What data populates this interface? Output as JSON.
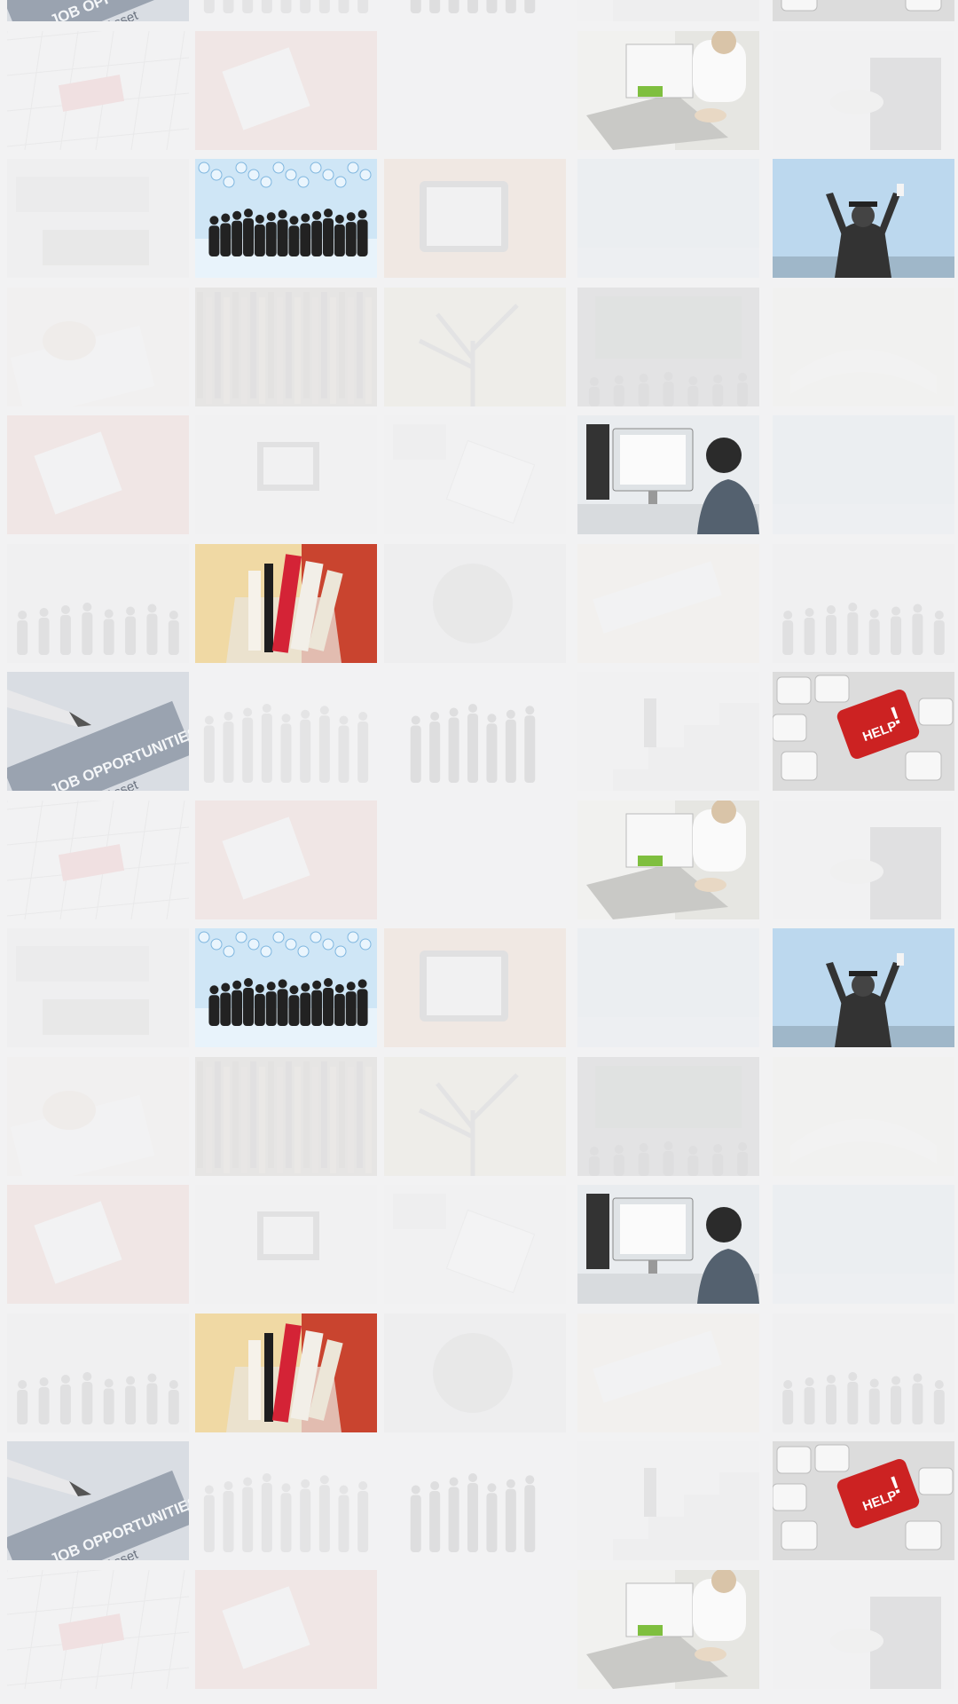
{
  "background_color": "#f2f2f3",
  "tiles": [
    {
      "kind": "job-opportunities",
      "caption": "JOB OPPORTUNITIES",
      "extra_text": "Asset",
      "visible": true
    },
    {
      "kind": "group-standing",
      "visible": false
    },
    {
      "kind": "group-standing-dark",
      "visible": false
    },
    {
      "kind": "stairs-walker",
      "visible": false
    },
    {
      "kind": "help-key",
      "caption": "HELP",
      "visible": true
    },
    {
      "kind": "calendar-red",
      "visible": false
    },
    {
      "kind": "notebook-desk",
      "visible": false
    },
    {
      "kind": "blank",
      "visible": false
    },
    {
      "kind": "laptop-typing",
      "visible": true
    },
    {
      "kind": "handshake",
      "visible": false
    },
    {
      "kind": "keyboard-desk",
      "visible": false
    },
    {
      "kind": "social-network-people",
      "visible": true
    },
    {
      "kind": "tablet-hands",
      "visible": false
    },
    {
      "kind": "sky-person",
      "visible": false
    },
    {
      "kind": "graduate-arms",
      "visible": true
    },
    {
      "kind": "writing-hand",
      "visible": false
    },
    {
      "kind": "bookshelf",
      "visible": false
    },
    {
      "kind": "tree-branches",
      "visible": false
    },
    {
      "kind": "classroom-board",
      "visible": false
    },
    {
      "kind": "open-book",
      "visible": false
    },
    {
      "kind": "red-notebook",
      "visible": false
    },
    {
      "kind": "office-computer",
      "visible": false
    },
    {
      "kind": "papers-calculator",
      "visible": false
    },
    {
      "kind": "woman-monitor",
      "visible": true
    },
    {
      "kind": "blue-sky",
      "visible": false
    },
    {
      "kind": "crowd-silhouette",
      "visible": false
    },
    {
      "kind": "pencil-cup",
      "visible": true
    },
    {
      "kind": "dial-tools",
      "visible": false
    },
    {
      "kind": "employment-keyboard",
      "visible": false
    },
    {
      "kind": "dark-meeting",
      "visible": false
    }
  ]
}
